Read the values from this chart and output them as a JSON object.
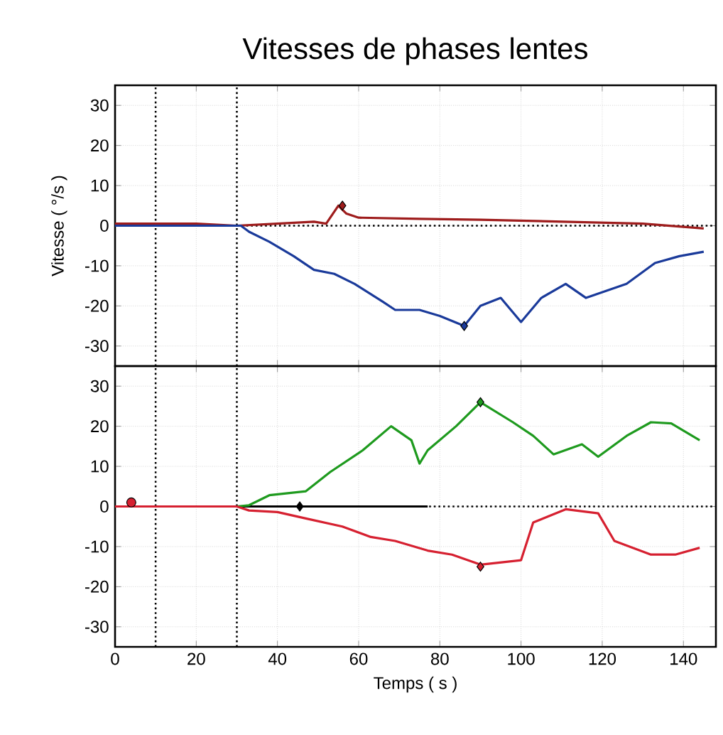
{
  "chart_data": [
    {
      "type": "line",
      "title": "Vitesses de phases lentes",
      "ylabel": "Vitesse ( °/s )",
      "xlim": [
        0,
        148
      ],
      "ylim": [
        -35,
        35
      ],
      "xticks": [
        0,
        20,
        40,
        60,
        80,
        100,
        120,
        140
      ],
      "yticks": [
        -30,
        -20,
        -10,
        0,
        10,
        20,
        30
      ],
      "grid": true,
      "tick_labels": "y",
      "ref_lines": [
        {
          "axis": "x",
          "value": 10,
          "color": "#000000",
          "line_style": "dotted"
        },
        {
          "axis": "x",
          "value": 30,
          "color": "#000000",
          "line_style": "dotted"
        },
        {
          "axis": "y",
          "value": 0,
          "color": "#000000",
          "line_style": "dotted"
        }
      ],
      "series": [
        {
          "color": "#9e1c1c",
          "x": [
            0,
            10,
            20,
            30,
            40,
            49,
            52,
            55,
            57,
            60,
            75,
            90,
            110,
            130,
            145
          ],
          "values": [
            0.5,
            0.5,
            0.5,
            0,
            0.5,
            1,
            0.5,
            5,
            3,
            2,
            1.7,
            1.5,
            1,
            0.5,
            -0.7
          ]
        },
        {
          "color": "#1a3a9a",
          "x": [
            0,
            31,
            33,
            38,
            44,
            49,
            54,
            59,
            66,
            69,
            75,
            80,
            86,
            90,
            95,
            100,
            105,
            111,
            116,
            126,
            133,
            139,
            145
          ],
          "values": [
            0,
            0,
            -1.5,
            -4,
            -7.6,
            -11,
            -12,
            -14.5,
            -19,
            -21,
            -21,
            -22.5,
            -25,
            -20,
            -18,
            -24,
            -18,
            -14.5,
            -18,
            -14.5,
            -9.3,
            -7.6,
            -6.5
          ]
        },
        {
          "type": "scatter",
          "marker": "diamond",
          "color": "#9e1c1c",
          "x": [
            56
          ],
          "values": [
            5
          ]
        },
        {
          "type": "scatter",
          "marker": "diamond",
          "color": "#1a3a9a",
          "x": [
            86
          ],
          "values": [
            -25
          ]
        }
      ]
    },
    {
      "type": "line",
      "xlabel": "Temps ( s )",
      "xlim": [
        0,
        148
      ],
      "ylim": [
        -35,
        35
      ],
      "xticks": [
        0,
        20,
        40,
        60,
        80,
        100,
        120,
        140
      ],
      "yticks": [
        -30,
        -20,
        -10,
        0,
        10,
        20,
        30
      ],
      "grid": true,
      "ref_lines": [
        {
          "axis": "x",
          "value": 10,
          "color": "#000000",
          "line_style": "dotted"
        },
        {
          "axis": "x",
          "value": 30,
          "color": "#000000",
          "line_style": "dotted"
        },
        {
          "axis": "y",
          "value": 0,
          "color": "#000000",
          "line_style": "dotted"
        }
      ],
      "series": [
        {
          "color": "#000000",
          "x": [
            0,
            77
          ],
          "values": [
            0,
            0
          ]
        },
        {
          "color": "#1e9a1e",
          "x": [
            0,
            30,
            33,
            38,
            47,
            53,
            61,
            68,
            73,
            75,
            77,
            84,
            90,
            98,
            103,
            108,
            115,
            119,
            126,
            132,
            137,
            144
          ],
          "values": [
            0,
            0,
            0.3,
            2.8,
            3.8,
            8.6,
            14,
            20,
            16.5,
            10.7,
            14,
            20,
            26,
            21,
            17.6,
            13,
            15.5,
            12.4,
            17.6,
            21,
            20.7,
            16.5
          ]
        },
        {
          "color": "#d62030",
          "x": [
            0,
            30,
            33,
            40,
            47,
            56,
            63,
            69,
            77,
            83,
            90,
            100,
            103,
            111,
            119,
            123,
            132,
            138,
            144
          ],
          "values": [
            0,
            0,
            -1,
            -1.4,
            -3,
            -5,
            -7.6,
            -8.6,
            -11,
            -12,
            -14.5,
            -13.4,
            -4,
            -0.7,
            -1.7,
            -8.6,
            -12,
            -12,
            -10.3
          ]
        },
        {
          "type": "scatter",
          "marker": "diamond",
          "color": "#000000",
          "x": [
            45.5
          ],
          "values": [
            0
          ]
        },
        {
          "type": "scatter",
          "marker": "diamond",
          "color": "#1e9a1e",
          "x": [
            90
          ],
          "values": [
            26
          ]
        },
        {
          "type": "scatter",
          "marker": "diamond",
          "color": "#d62030",
          "x": [
            90
          ],
          "values": [
            -15
          ]
        },
        {
          "type": "scatter",
          "marker": "circle",
          "color": "#d62030",
          "x": [
            4
          ],
          "values": [
            1
          ]
        }
      ]
    }
  ]
}
